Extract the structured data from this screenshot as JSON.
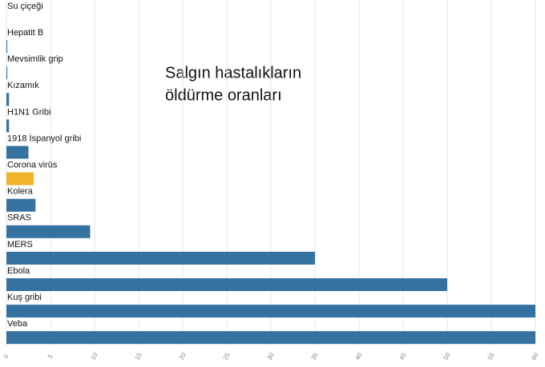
{
  "chart_data": {
    "type": "bar",
    "orientation": "horizontal",
    "title": [
      "Salgın hastalıkların",
      "öldürme oranları"
    ],
    "categories": [
      "Su çiçeği",
      "Hepatit B",
      "Mevsimlik grip",
      "Kızamık",
      "H1N1 Gribi",
      "1918 İspanyol gribi",
      "Corona virüs",
      "Kolera",
      "SRAS",
      "MERS",
      "Ebola",
      "Kuş gribi",
      "Veba"
    ],
    "values": [
      0,
      0.1,
      0.1,
      0.3,
      0.3,
      2.5,
      3.1,
      3.3,
      9.5,
      35,
      50,
      60,
      60
    ],
    "colors": [
      "#3572a0",
      "#3572a0",
      "#3572a0",
      "#3572a0",
      "#3572a0",
      "#3572a0",
      "#f0b429",
      "#3572a0",
      "#3572a0",
      "#3572a0",
      "#3572a0",
      "#3572a0",
      "#3572a0"
    ],
    "xlim": [
      0,
      60
    ],
    "xticks": [
      0,
      5,
      10,
      15,
      20,
      25,
      30,
      35,
      40,
      45,
      50,
      55,
      60
    ],
    "grid": true
  }
}
